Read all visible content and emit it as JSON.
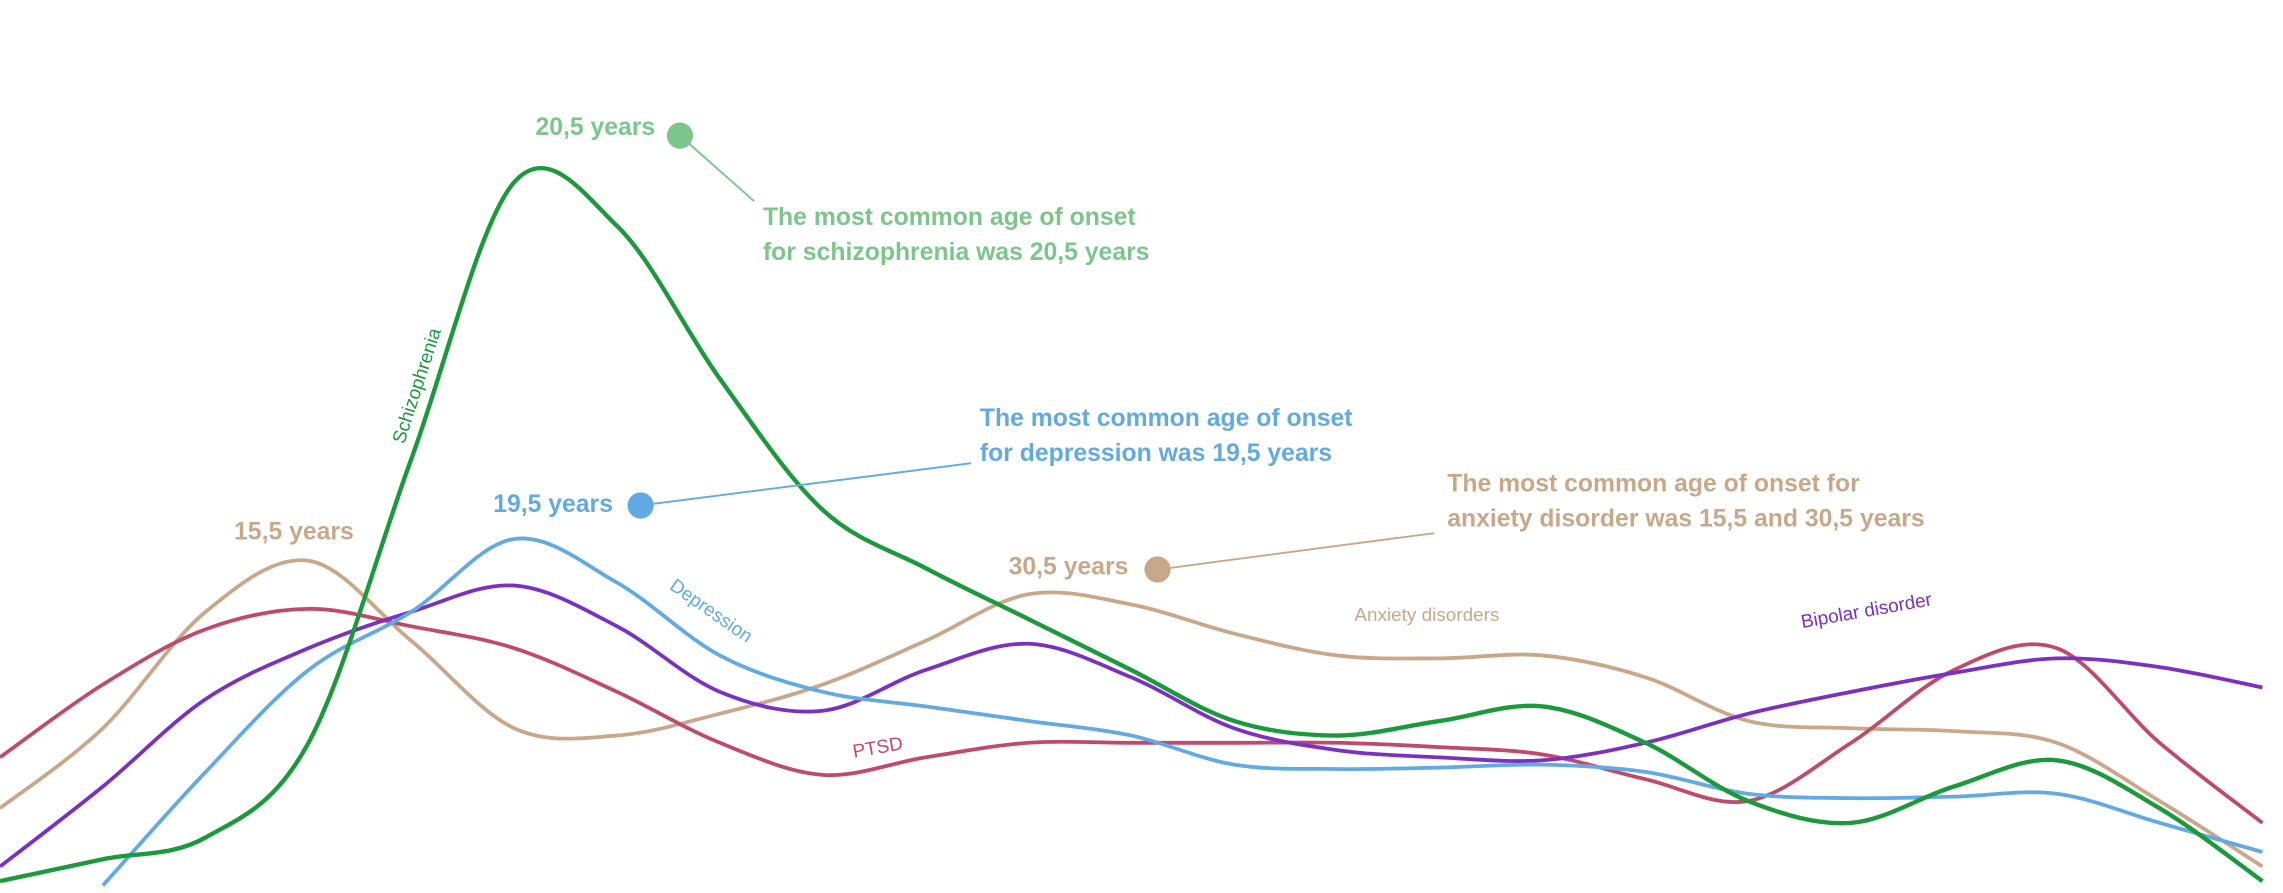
{
  "chart_data": {
    "type": "line",
    "x": [
      10,
      12,
      14,
      16,
      18,
      20,
      22,
      24,
      26,
      28,
      30,
      32,
      34,
      36,
      38,
      40,
      42,
      44,
      46,
      48,
      50,
      52,
      54
    ],
    "xlim": [
      10,
      54.4
    ],
    "ylim": [
      0,
      120
    ],
    "series": [
      {
        "name": "Schizophrenia",
        "color": "#1a9a3a",
        "values": [
          1.6,
          4.6,
          7.6,
          20.6,
          59.6,
          97.6,
          91.6,
          70.6,
          52.6,
          44.6,
          37.6,
          30.6,
          23.6,
          21.6,
          23.6,
          25.6,
          20.6,
          12.6,
          9.6,
          14.6,
          18.2,
          11.6,
          1.6
        ]
      },
      {
        "name": "Depression",
        "color": "#62aae3",
        "values": [
          null,
          1.0,
          16.6,
          30.6,
          38.6,
          48.6,
          42.6,
          32.6,
          27.6,
          25.6,
          23.6,
          21.6,
          17.6,
          17.0,
          17.2,
          17.6,
          16.6,
          13.6,
          13.0,
          13.2,
          13.6,
          9.6,
          5.6
        ]
      },
      {
        "name": "Anxiety disorders",
        "color": "#c9a88a",
        "values": [
          11.6,
          22.6,
          38.6,
          45.6,
          34.6,
          22.6,
          21.6,
          24.6,
          28.6,
          34.6,
          41.0,
          39.6,
          35.6,
          32.6,
          32.2,
          32.6,
          29.6,
          23.6,
          22.6,
          22.2,
          20.6,
          12.6,
          3.6
        ]
      },
      {
        "name": "Bipolar disorder",
        "color": "#7b30c4",
        "values": [
          3.6,
          14.6,
          26.6,
          33.6,
          38.6,
          42.2,
          36.6,
          27.6,
          25.0,
          30.6,
          34.2,
          29.6,
          22.6,
          19.6,
          18.6,
          18.2,
          20.6,
          24.6,
          27.6,
          30.2,
          32.2,
          31.0,
          28.2
        ]
      },
      {
        "name": "PTSD",
        "color": "#c04a6a",
        "values": [
          18.6,
          28.6,
          36.2,
          39.0,
          36.6,
          33.6,
          27.6,
          20.6,
          16.2,
          18.6,
          20.6,
          20.6,
          20.6,
          20.6,
          20.0,
          19.0,
          15.6,
          12.6,
          20.6,
          30.6,
          33.6,
          20.6,
          9.6
        ]
      }
    ],
    "annotations": [
      {
        "color": "#7cc58b",
        "labels": [
          "20,5 years"
        ],
        "lines": [
          "The most common age of onset",
          "for schizophrenia was 20,5 years"
        ]
      },
      {
        "color": "#62aae3",
        "labels": [
          "19,5 years"
        ],
        "lines": [
          "The most common age of onset",
          "for depression was 19,5 years"
        ]
      },
      {
        "color": "#c9a88a",
        "labels": [
          "15,5 years",
          "30,5 years"
        ],
        "lines": [
          "The most common age of onset for",
          "anxiety disorder was 15,5 and 30,5 years"
        ]
      }
    ]
  }
}
